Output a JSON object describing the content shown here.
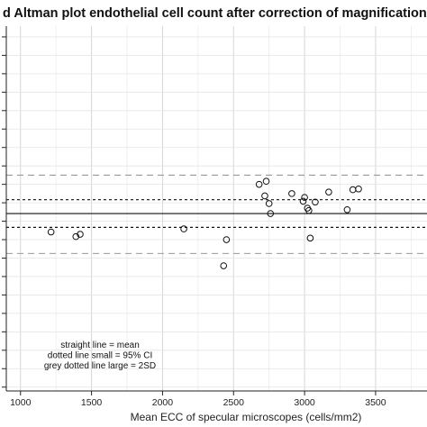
{
  "chart_data": {
    "type": "scatter",
    "title": "d Altman plot endothelial cell count after correction of magnification fa",
    "xlabel": "Mean ECC of specular microscopes (cells/mm2)",
    "ylabel": "",
    "xlim": [
      900,
      3900
    ],
    "ylim": [
      -1125,
      1250
    ],
    "x_ticks": [
      1000,
      1500,
      2000,
      2500,
      3000,
      3500
    ],
    "x_tick_labels": [
      "1000",
      "1500",
      "2000",
      "2500",
      "3000",
      "3500"
    ],
    "y_ticks": [
      -1100,
      -980,
      -860,
      -740,
      -620,
      -500,
      -380,
      -260,
      -140,
      -20,
      100,
      220,
      340,
      460,
      580,
      700,
      820,
      940,
      1060,
      1180
    ],
    "grid": true,
    "reference_lines": {
      "mean": 30,
      "ci_upper": 120,
      "ci_lower": -60,
      "sd_upper": 280,
      "sd_lower": -230
    },
    "points": [
      {
        "x": 1215,
        "y": -90
      },
      {
        "x": 1390,
        "y": -120
      },
      {
        "x": 1420,
        "y": -105
      },
      {
        "x": 2150,
        "y": -70
      },
      {
        "x": 2430,
        "y": -310
      },
      {
        "x": 2450,
        "y": -140
      },
      {
        "x": 2680,
        "y": 220
      },
      {
        "x": 2720,
        "y": 145
      },
      {
        "x": 2730,
        "y": 240
      },
      {
        "x": 2750,
        "y": 95
      },
      {
        "x": 2760,
        "y": 30
      },
      {
        "x": 2910,
        "y": 160
      },
      {
        "x": 2990,
        "y": 110
      },
      {
        "x": 3000,
        "y": 135
      },
      {
        "x": 3020,
        "y": 65
      },
      {
        "x": 3030,
        "y": 50
      },
      {
        "x": 3040,
        "y": -130
      },
      {
        "x": 3075,
        "y": 105
      },
      {
        "x": 3170,
        "y": 170
      },
      {
        "x": 3300,
        "y": 55
      },
      {
        "x": 3340,
        "y": 185
      },
      {
        "x": 3380,
        "y": 190
      }
    ],
    "legend_lines": [
      "straight line = mean",
      "dotted line small = 95% CI",
      "grey dotted line large = 2SD"
    ]
  }
}
